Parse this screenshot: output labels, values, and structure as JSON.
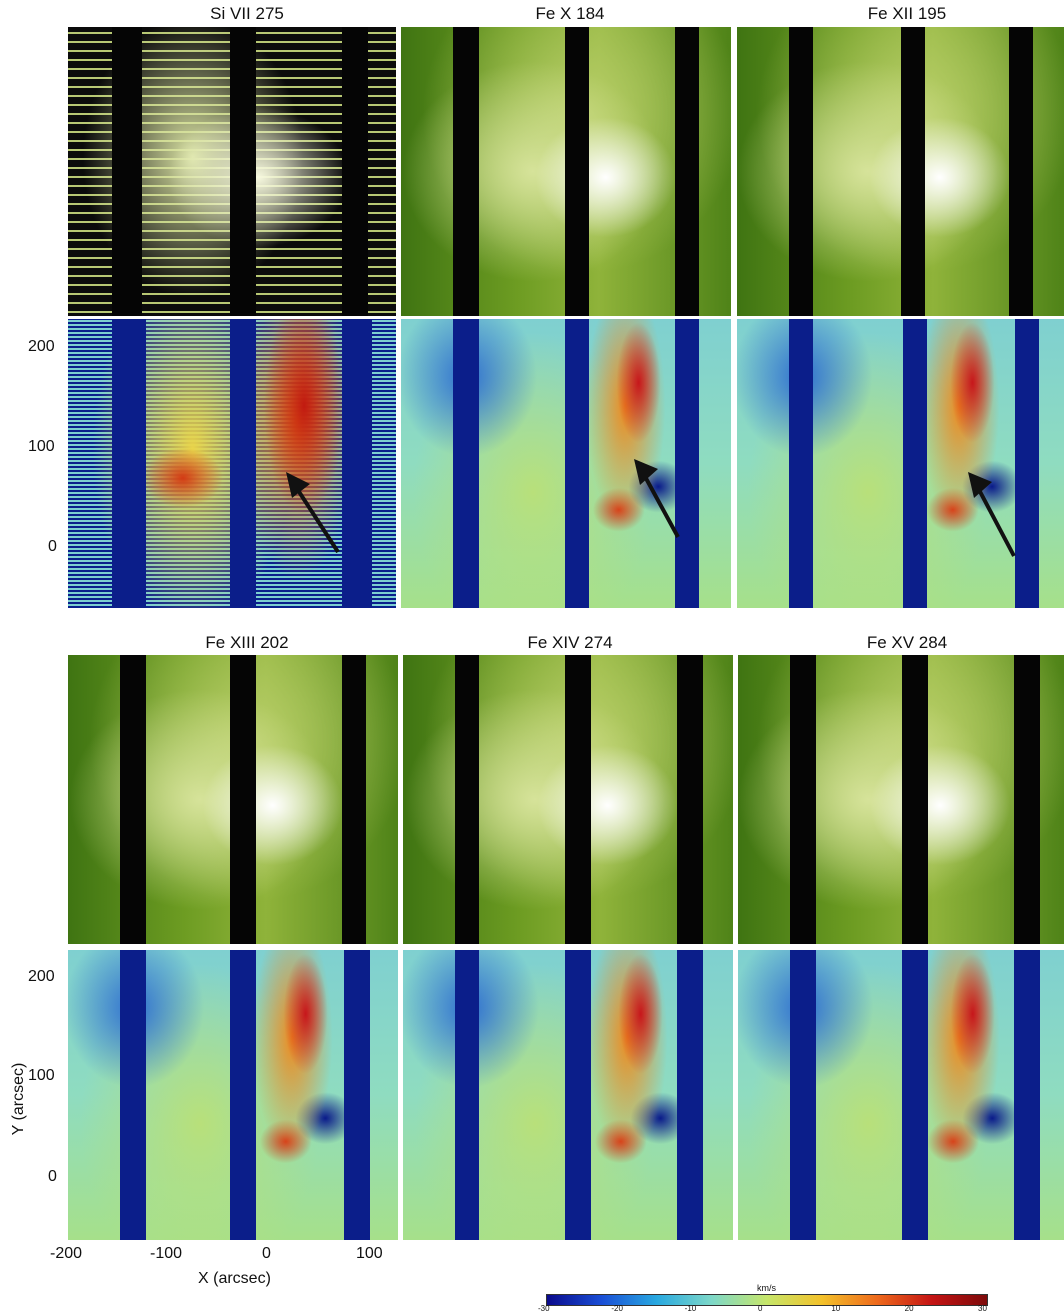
{
  "rows": [
    {
      "titles": [
        "Si VII  275",
        "Fe X  184",
        "Fe XII  195"
      ]
    },
    {
      "titles": [
        "Fe XIII  202",
        "Fe XIV  274",
        "Fe XV  284"
      ]
    }
  ],
  "y_axis": {
    "label": "Y (arcsec)",
    "ticks": [
      "200",
      "100",
      "0"
    ]
  },
  "x_axis": {
    "label": "X (arcsec)",
    "ticks": [
      "-200",
      "-100",
      "0",
      "100"
    ]
  },
  "colorbar": {
    "unit": "km/s",
    "ticks": [
      "-30",
      "-20",
      "-10",
      "0",
      "10",
      "20",
      "30"
    ],
    "colors": [
      "#0a0a8c",
      "#1a4fd6",
      "#29a9e0",
      "#7ed8c8",
      "#c6e66a",
      "#f3c12a",
      "#ee6a1c",
      "#c41414",
      "#7d0a0a"
    ]
  },
  "colors": {
    "intensity_gap": "#050505",
    "velocity_gap": "#0b1e8a",
    "arrow": "#111111"
  }
}
